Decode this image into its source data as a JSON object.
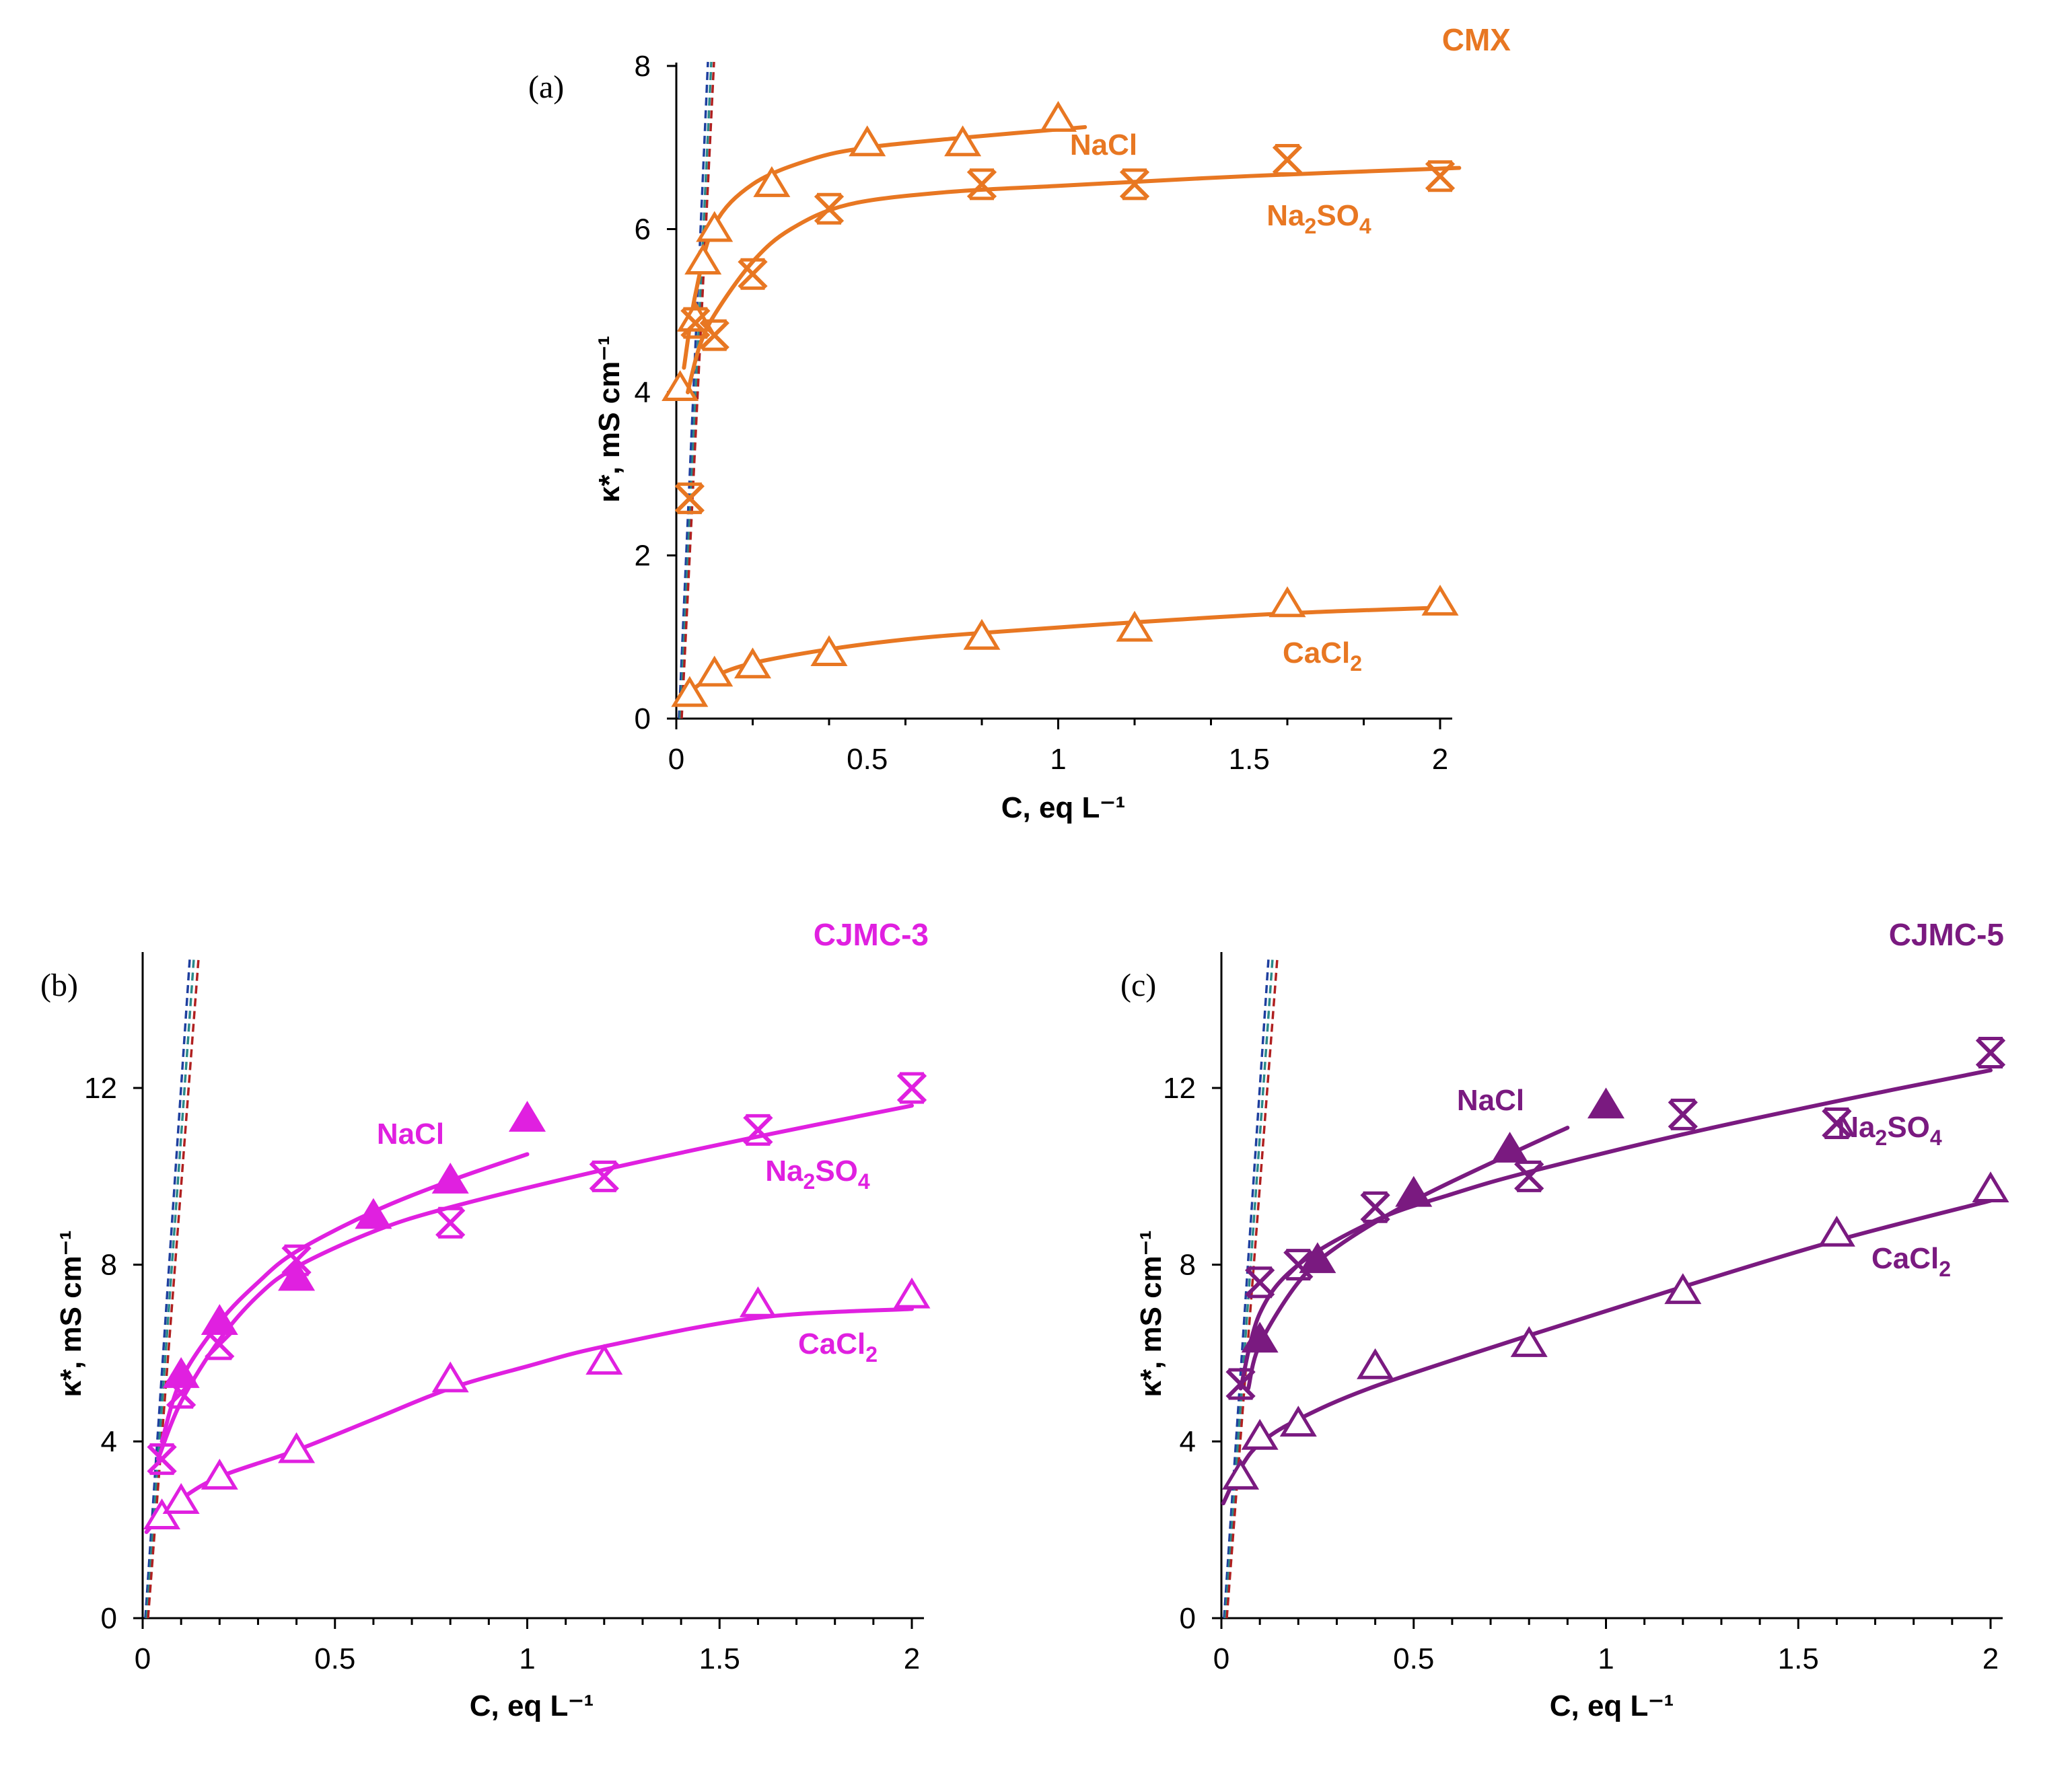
{
  "chart_data": [
    {
      "type": "scatter",
      "panel": "(a)",
      "membrane": "CMX",
      "color": "#e87722",
      "xlabel": "C,  eq L⁻¹",
      "ylabel": "κ*,  mS cm⁻¹",
      "xlim": [
        0,
        2
      ],
      "ylim": [
        0,
        8
      ],
      "xticks": [
        0,
        0.5,
        1,
        1.5,
        2
      ],
      "xtick_labels": [
        "0",
        "0.5",
        "1",
        "1.5",
        "2"
      ],
      "yticks": [
        0,
        2,
        4,
        6,
        8
      ],
      "ytick_labels": [
        "0",
        "2",
        "4",
        "6",
        "8"
      ],
      "grid": false,
      "series": [
        {
          "name": "NaCl",
          "label_parts": [
            "NaCl"
          ],
          "marker": "triangle-open",
          "x": [
            0.01,
            0.05,
            0.07,
            0.1,
            0.25,
            0.5,
            0.75,
            1.0
          ],
          "y": [
            4.05,
            4.9,
            5.6,
            6.0,
            6.55,
            7.05,
            7.05,
            7.35
          ],
          "fit": [
            [
              0.02,
              4.3
            ],
            [
              0.05,
              5.2
            ],
            [
              0.1,
              6.05
            ],
            [
              0.2,
              6.55
            ],
            [
              0.35,
              6.85
            ],
            [
              0.5,
              7.0
            ],
            [
              0.75,
              7.12
            ],
            [
              1.07,
              7.25
            ]
          ]
        },
        {
          "name": "Na2SO4",
          "label_parts": [
            "Na",
            "2",
            "SO",
            "4"
          ],
          "marker": "asterisk",
          "x": [
            0.035,
            0.05,
            0.1,
            0.2,
            0.4,
            0.8,
            1.2,
            1.6,
            2.0
          ],
          "y": [
            2.7,
            4.85,
            4.7,
            5.45,
            6.25,
            6.55,
            6.55,
            6.85,
            6.65
          ],
          "fit": [
            [
              0.03,
              4.0
            ],
            [
              0.06,
              4.55
            ],
            [
              0.1,
              4.95
            ],
            [
              0.2,
              5.6
            ],
            [
              0.3,
              6.0
            ],
            [
              0.45,
              6.3
            ],
            [
              0.7,
              6.45
            ],
            [
              1.0,
              6.53
            ],
            [
              1.5,
              6.65
            ],
            [
              2.05,
              6.75
            ]
          ]
        },
        {
          "name": "CaCl2",
          "label_parts": [
            "CaCl",
            "2"
          ],
          "marker": "triangle-open",
          "x": [
            0.035,
            0.1,
            0.2,
            0.4,
            0.8,
            1.2,
            1.6,
            2.0
          ],
          "y": [
            0.3,
            0.55,
            0.65,
            0.8,
            1.0,
            1.1,
            1.4,
            1.42
          ],
          "fit": [
            [
              0.02,
              0.2
            ],
            [
              0.05,
              0.38
            ],
            [
              0.1,
              0.52
            ],
            [
              0.2,
              0.68
            ],
            [
              0.4,
              0.85
            ],
            [
              0.6,
              0.97
            ],
            [
              0.8,
              1.05
            ],
            [
              1.2,
              1.18
            ],
            [
              1.6,
              1.29
            ],
            [
              2.0,
              1.36
            ]
          ]
        }
      ]
    },
    {
      "type": "scatter",
      "panel": "(b)",
      "membrane": "CJMC-3",
      "color": "#e020e0",
      "xlabel": "C,  eq L⁻¹",
      "ylabel": "κ*,  mS cm⁻¹",
      "xlim": [
        0,
        2
      ],
      "ylim": [
        0,
        15
      ],
      "xticks": [
        0,
        0.5,
        1,
        1.5,
        2
      ],
      "xtick_labels": [
        "0",
        "0.5",
        "1",
        "1.5",
        "2"
      ],
      "yticks": [
        0,
        4,
        8,
        12
      ],
      "ytick_labels": [
        "0",
        "4",
        "8",
        "12"
      ],
      "grid": false,
      "series": [
        {
          "name": "NaCl",
          "label_parts": [
            "NaCl"
          ],
          "marker": "triangle-filled",
          "x": [
            0.1,
            0.2,
            0.4,
            0.6,
            0.8,
            1.0
          ],
          "y": [
            5.5,
            6.7,
            7.7,
            9.1,
            9.9,
            11.3
          ],
          "fit": [
            [
              0.05,
              4.0
            ],
            [
              0.1,
              5.4
            ],
            [
              0.2,
              6.7
            ],
            [
              0.3,
              7.6
            ],
            [
              0.4,
              8.3
            ],
            [
              0.6,
              9.2
            ],
            [
              0.8,
              9.9
            ],
            [
              1.0,
              10.5
            ]
          ]
        },
        {
          "name": "Na2SO4",
          "label_parts": [
            "Na",
            "2",
            "SO",
            "4"
          ],
          "marker": "asterisk",
          "x": [
            0.05,
            0.1,
            0.2,
            0.4,
            0.8,
            1.2,
            1.6,
            2.0
          ],
          "y": [
            3.6,
            5.1,
            6.2,
            8.1,
            8.95,
            10.0,
            11.05,
            12.0
          ],
          "fit": [
            [
              0.04,
              3.6
            ],
            [
              0.1,
              4.9
            ],
            [
              0.2,
              6.3
            ],
            [
              0.3,
              7.3
            ],
            [
              0.4,
              7.95
            ],
            [
              0.6,
              8.75
            ],
            [
              0.8,
              9.3
            ],
            [
              1.2,
              10.15
            ],
            [
              1.6,
              10.9
            ],
            [
              2.0,
              11.6
            ]
          ]
        },
        {
          "name": "CaCl2",
          "label_parts": [
            "CaCl",
            "2"
          ],
          "marker": "triangle-open",
          "x": [
            0.05,
            0.1,
            0.2,
            0.4,
            0.8,
            1.2,
            1.6,
            2.0
          ],
          "y": [
            2.3,
            2.65,
            3.2,
            3.8,
            5.4,
            5.8,
            7.1,
            7.3
          ],
          "fit": [
            [
              0.01,
              1.95
            ],
            [
              0.05,
              2.35
            ],
            [
              0.1,
              2.7
            ],
            [
              0.2,
              3.2
            ],
            [
              0.4,
              3.8
            ],
            [
              0.6,
              4.5
            ],
            [
              0.8,
              5.2
            ],
            [
              1.0,
              5.7
            ],
            [
              1.2,
              6.15
            ],
            [
              1.6,
              6.8
            ],
            [
              2.0,
              7.0
            ]
          ]
        }
      ]
    },
    {
      "type": "scatter",
      "panel": "(c)",
      "membrane": "CJMC-5",
      "color": "#7a1a80",
      "xlabel": "C,  eq L⁻¹",
      "ylabel": "κ*,  mS cm⁻¹",
      "xlim": [
        0,
        2
      ],
      "ylim": [
        0,
        15
      ],
      "xticks": [
        0,
        0.5,
        1,
        1.5,
        2
      ],
      "xtick_labels": [
        "0",
        "0.5",
        "1",
        "1.5",
        "2"
      ],
      "yticks": [
        0,
        4,
        8,
        12
      ],
      "ytick_labels": [
        "0",
        "4",
        "8",
        "12"
      ],
      "grid": false,
      "series": [
        {
          "name": "NaCl",
          "label_parts": [
            "NaCl"
          ],
          "marker": "triangle-filled",
          "x": [
            0.1,
            0.25,
            0.5,
            0.75,
            1.0
          ],
          "y": [
            6.3,
            8.1,
            9.6,
            10.6,
            11.6
          ],
          "fit": [
            [
              0.07,
              5.2
            ],
            [
              0.1,
              6.2
            ],
            [
              0.2,
              7.6
            ],
            [
              0.3,
              8.4
            ],
            [
              0.5,
              9.45
            ],
            [
              0.75,
              10.5
            ],
            [
              0.9,
              11.1
            ]
          ]
        },
        {
          "name": "Na2SO4",
          "label_parts": [
            "Na",
            "2",
            "SO",
            "4"
          ],
          "marker": "asterisk",
          "x": [
            0.05,
            0.1,
            0.2,
            0.4,
            0.8,
            1.2,
            1.6,
            2.0
          ],
          "y": [
            5.3,
            7.6,
            8.0,
            9.3,
            10.0,
            11.4,
            11.2,
            12.8
          ],
          "fit": [
            [
              0.05,
              5.2
            ],
            [
              0.1,
              6.9
            ],
            [
              0.2,
              8.0
            ],
            [
              0.4,
              9.0
            ],
            [
              0.6,
              9.6
            ],
            [
              0.8,
              10.1
            ],
            [
              1.2,
              10.95
            ],
            [
              1.6,
              11.7
            ],
            [
              2.0,
              12.4
            ]
          ]
        },
        {
          "name": "CaCl2",
          "label_parts": [
            "CaCl",
            "2"
          ],
          "marker": "triangle-open",
          "x": [
            0.05,
            0.1,
            0.2,
            0.4,
            0.8,
            1.2,
            1.6,
            2.0
          ],
          "y": [
            3.2,
            4.1,
            4.4,
            5.7,
            6.2,
            7.4,
            8.7,
            9.7
          ],
          "fit": [
            [
              0.005,
              2.6
            ],
            [
              0.05,
              3.4
            ],
            [
              0.1,
              3.95
            ],
            [
              0.2,
              4.5
            ],
            [
              0.4,
              5.25
            ],
            [
              0.8,
              6.4
            ],
            [
              1.2,
              7.5
            ],
            [
              1.6,
              8.55
            ],
            [
              2.0,
              9.45
            ]
          ]
        }
      ]
    }
  ]
}
